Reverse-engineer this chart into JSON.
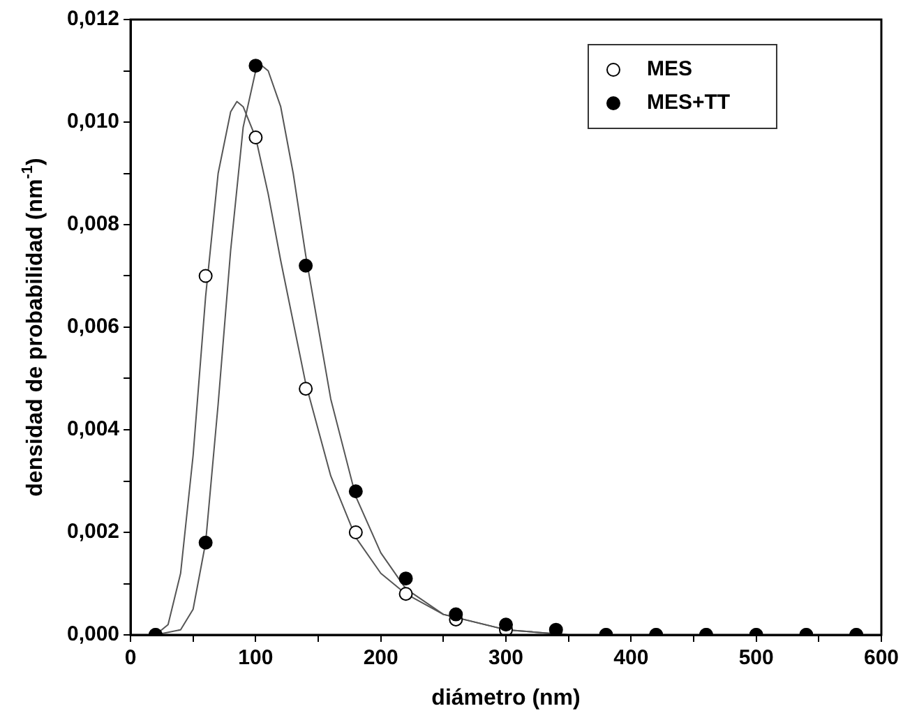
{
  "chart_data": {
    "type": "scatter",
    "xlabel": "diámetro (nm)",
    "ylabel": "densidad de probabilidad (nm$^{-1}$)",
    "xlim": [
      0,
      600
    ],
    "xticks": [
      0,
      {
        "value": 50,
        "label": null
      },
      100,
      {
        "value": 150,
        "label": null
      },
      200,
      {
        "value": 250,
        "label": null
      },
      300,
      {
        "value": 350,
        "label": null
      },
      400,
      {
        "value": 450,
        "label": null
      },
      500,
      {
        "value": 550,
        "label": null
      },
      600
    ],
    "ylim": [
      0,
      0.012
    ],
    "yticks": [
      {
        "value": 0,
        "label": "0,000"
      },
      {
        "value": 0.001,
        "label": null
      },
      {
        "value": 0.002,
        "label": "0,002"
      },
      {
        "value": 0.003,
        "label": null
      },
      {
        "value": 0.004,
        "label": "0,004"
      },
      {
        "value": 0.005,
        "label": null
      },
      {
        "value": 0.006,
        "label": "0,006"
      },
      {
        "value": 0.007,
        "label": null
      },
      {
        "value": 0.008,
        "label": "0,008"
      },
      {
        "value": 0.009,
        "label": null
      },
      {
        "value": 0.01,
        "label": "0,010"
      },
      {
        "value": 0.011,
        "label": null
      },
      {
        "value": 0.012,
        "label": "0,012"
      }
    ],
    "grid": false,
    "legend": "top right",
    "marker": "circle",
    "x": [
      20,
      60,
      100,
      140,
      180,
      220,
      260,
      300,
      340,
      380,
      420,
      460,
      500,
      540,
      580
    ],
    "series": [
      {
        "name": "MES",
        "color": "#ffffff",
        "values": [
          0,
          0.007,
          0.0097,
          0.0048,
          0.002,
          0.0008,
          0.0003,
          0.0001,
          null,
          0,
          0,
          0,
          0,
          0,
          0
        ]
      },
      {
        "name": "MES+TT",
        "color": "#000000",
        "values": [
          0,
          0.0018,
          0.0111,
          0.0072,
          0.0028,
          0.0011,
          0.0004,
          0.0002,
          0.0001,
          0,
          0,
          0,
          0,
          0,
          0
        ]
      },
      {
        "type": "line",
        "color": "#555555",
        "marker": "none",
        "x": [
          20,
          30,
          40,
          50,
          60,
          70,
          80,
          85,
          90,
          100,
          110,
          120,
          140,
          160,
          180,
          200,
          220,
          250,
          300,
          350,
          400,
          600
        ],
        "values": [
          0,
          0.0002,
          0.0012,
          0.0035,
          0.0066,
          0.009,
          0.0102,
          0.0104,
          0.0103,
          0.0097,
          0.0086,
          0.0073,
          0.0049,
          0.0031,
          0.0019,
          0.0012,
          0.0008,
          0.0004,
          0.0001,
          0,
          0,
          0
        ]
      },
      {
        "type": "line",
        "color": "#555555",
        "marker": "none",
        "x": [
          20,
          40,
          50,
          60,
          70,
          80,
          90,
          100,
          105,
          110,
          120,
          130,
          140,
          160,
          180,
          200,
          220,
          250,
          300,
          350,
          400,
          600
        ],
        "values": [
          0,
          0.0001,
          0.0005,
          0.0018,
          0.0045,
          0.0075,
          0.0099,
          0.011,
          0.0111,
          0.011,
          0.0103,
          0.009,
          0.0074,
          0.0046,
          0.0027,
          0.0016,
          0.0009,
          0.0004,
          0.0001,
          0,
          0,
          0
        ]
      }
    ]
  }
}
